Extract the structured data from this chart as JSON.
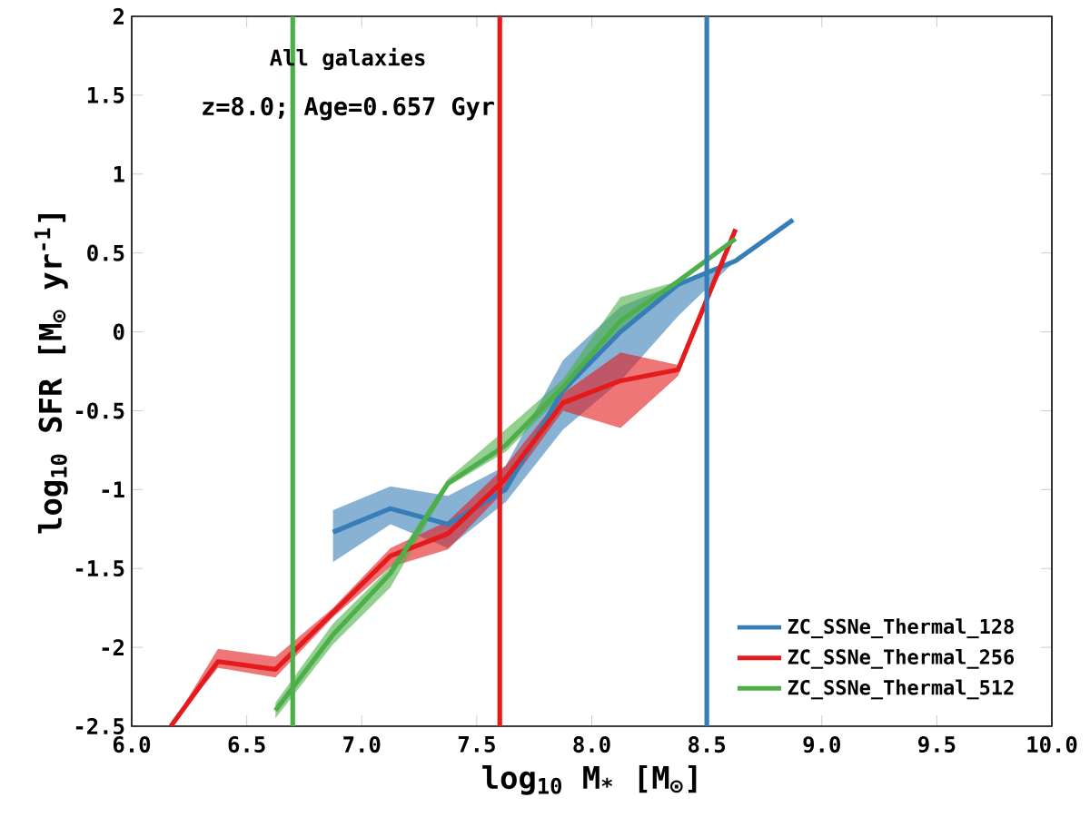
{
  "chart_data": {
    "type": "line",
    "xlabel": "log$_{10}$ M$_{*}$ [M$_{⊙}$]",
    "ylabel": "log$_{10}$ SFR [M$_{⊙}$ yr$^{-1}$]",
    "annotations": [
      "All galaxies",
      "z=8.0; Age=0.657 Gyr"
    ],
    "series": [
      {
        "name": "ZC_SSNe_Thermal_128",
        "color": "#377eb8",
        "x": [
          6.875,
          7.125,
          7.375,
          7.625,
          7.875,
          8.125,
          8.375,
          8.625,
          8.875
        ],
        "values": [
          -1.27,
          -1.12,
          -1.22,
          -1.0,
          -0.37,
          0.0,
          0.3,
          0.45,
          0.71
        ],
        "lower": [
          -1.46,
          -1.22,
          -1.37,
          -1.08,
          -0.62,
          -0.31,
          0.1,
          0.45,
          0.71
        ],
        "upper": [
          -1.13,
          -0.98,
          -1.04,
          -0.85,
          -0.18,
          0.16,
          0.31,
          0.45,
          0.71
        ]
      },
      {
        "name": "ZC_SSNe_Thermal_256",
        "color": "#e41a1c",
        "x": [
          6.17,
          6.375,
          6.625,
          6.875,
          7.125,
          7.375,
          7.625,
          7.875,
          8.125,
          8.375,
          8.625
        ],
        "values": [
          -2.5,
          -2.09,
          -2.14,
          -1.78,
          -1.42,
          -1.28,
          -0.93,
          -0.45,
          -0.31,
          -0.24,
          0.65
        ],
        "lower": [
          -2.5,
          -2.13,
          -2.19,
          -1.81,
          -1.49,
          -1.38,
          -1.0,
          -0.5,
          -0.61,
          -0.28,
          0.65
        ],
        "upper": [
          -2.5,
          -2.01,
          -2.06,
          -1.75,
          -1.37,
          -1.2,
          -0.85,
          -0.39,
          -0.13,
          -0.21,
          0.65
        ]
      },
      {
        "name": "ZC_SSNe_Thermal_512",
        "color": "#4daf4a",
        "x": [
          6.625,
          6.875,
          7.125,
          7.375,
          7.625,
          7.875,
          8.125,
          8.375,
          8.625
        ],
        "values": [
          -2.4,
          -1.92,
          -1.53,
          -0.96,
          -0.72,
          -0.35,
          0.07,
          0.32,
          0.59
        ],
        "lower": [
          -2.45,
          -1.98,
          -1.62,
          -0.98,
          -0.76,
          -0.4,
          0.01,
          0.32,
          0.59
        ],
        "upper": [
          -2.35,
          -1.85,
          -1.49,
          -0.93,
          -0.62,
          -0.3,
          0.22,
          0.32,
          0.59
        ]
      }
    ],
    "ref_lines": [
      {
        "axis": "x",
        "value": 6.7,
        "color": "#4daf4a"
      },
      {
        "axis": "x",
        "value": 7.6,
        "color": "#e41a1c"
      },
      {
        "axis": "x",
        "value": 8.5,
        "color": "#377eb8"
      }
    ],
    "xlim": [
      6.0,
      10.0
    ],
    "ylim": [
      -2.5,
      2
    ],
    "xticks": [
      {
        "value": 6.0,
        "label": "6.0"
      },
      {
        "value": 6.5,
        "label": "6.5"
      },
      {
        "value": 7.0,
        "label": "7.0"
      },
      {
        "value": 7.5,
        "label": "7.5"
      },
      {
        "value": 8.0,
        "label": "8.0"
      },
      {
        "value": 8.5,
        "label": "8.5"
      },
      {
        "value": 9.0,
        "label": "9.0"
      },
      {
        "value": 9.5,
        "label": "9.5"
      },
      {
        "value": 10.0,
        "label": "10.0"
      }
    ],
    "yticks": [
      -2.5,
      -2,
      -1.5,
      -1,
      -0.5,
      0,
      0.5,
      1,
      1.5,
      2
    ],
    "legend": "bottom right",
    "grid": false
  }
}
